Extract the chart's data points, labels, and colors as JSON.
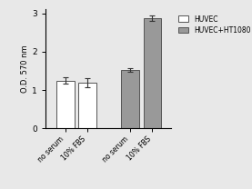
{
  "groups": [
    "no serum",
    "10% FBS",
    "no serum",
    "10% FBS"
  ],
  "values": [
    1.25,
    1.2,
    1.52,
    2.88
  ],
  "errors": [
    0.08,
    0.12,
    0.05,
    0.07
  ],
  "bar_colors": [
    "#ffffff",
    "#ffffff",
    "#999999",
    "#999999"
  ],
  "bar_edgecolors": [
    "#555555",
    "#555555",
    "#555555",
    "#555555"
  ],
  "ylabel": "O.D. 570 nm",
  "ylim": [
    0,
    3.1
  ],
  "yticks": [
    0,
    1,
    2,
    3
  ],
  "legend_labels": [
    "HUVEC",
    "HUVEC+HT1080"
  ],
  "legend_colors": [
    "#ffffff",
    "#999999"
  ],
  "legend_edgecolors": [
    "#555555",
    "#555555"
  ],
  "background_color": "#e8e8e8",
  "bar_width": 0.18
}
